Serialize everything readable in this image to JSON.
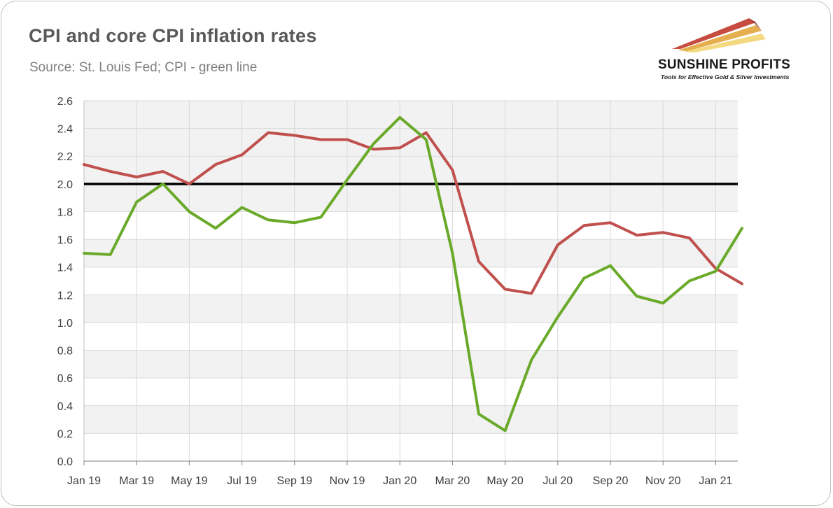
{
  "header": {
    "title": "CPI and core CPI inflation rates",
    "subtitle": "Source: St. Louis Fed; CPI - green line"
  },
  "logo": {
    "name": "SUNSHINE PROFITS",
    "tagline": "Tools for Effective Gold & Silver Investments"
  },
  "colors": {
    "cpi": "#6aaa2a",
    "core_cpi": "#c0504d",
    "reference_line": "#000000",
    "plot_band": "#f2f2f2",
    "grid": "#d9d9d9"
  },
  "chart_data": {
    "type": "line",
    "title": "CPI and core CPI inflation rates",
    "xlabel": "",
    "ylabel": "",
    "ylim": [
      0,
      2.6
    ],
    "y_ticks": [
      "0.0",
      "0.2",
      "0.4",
      "0.6",
      "0.8",
      "1.0",
      "1.2",
      "1.4",
      "1.6",
      "1.8",
      "2.0",
      "2.2",
      "2.4",
      "2.6"
    ],
    "x": [
      "Jan 19",
      "Feb 19",
      "Mar 19",
      "Apr 19",
      "May 19",
      "Jun 19",
      "Jul 19",
      "Aug 19",
      "Sep 19",
      "Oct 19",
      "Nov 19",
      "Dec 19",
      "Jan 20",
      "Feb 20",
      "Mar 20",
      "Apr 20",
      "May 20",
      "Jun 20",
      "Jul 20",
      "Aug 20",
      "Sep 20",
      "Oct 20",
      "Nov 20",
      "Dec 20",
      "Jan 21",
      "Feb 21"
    ],
    "x_tick_labels": [
      "Jan 19",
      "Mar 19",
      "May 19",
      "Jul 19",
      "Sep 19",
      "Nov 19",
      "Jan 20",
      "Mar 20",
      "May 20",
      "Jul 20",
      "Sep 20",
      "Nov 20",
      "Jan 21"
    ],
    "reference_line": 2.0,
    "grid": true,
    "series": [
      {
        "name": "CPI",
        "color": "#6aaa2a",
        "values": [
          1.5,
          1.49,
          1.87,
          2.0,
          1.8,
          1.68,
          1.83,
          1.74,
          1.72,
          1.76,
          2.03,
          2.29,
          2.48,
          2.32,
          1.5,
          0.34,
          0.22,
          0.73,
          1.04,
          1.32,
          1.41,
          1.19,
          1.14,
          1.3,
          1.37,
          1.68
        ]
      },
      {
        "name": "Core CPI",
        "color": "#c0504d",
        "values": [
          2.14,
          2.09,
          2.05,
          2.09,
          2.0,
          2.14,
          2.21,
          2.37,
          2.35,
          2.32,
          2.32,
          2.25,
          2.26,
          2.37,
          2.1,
          1.44,
          1.24,
          1.21,
          1.56,
          1.7,
          1.72,
          1.63,
          1.65,
          1.61,
          1.39,
          1.28
        ]
      }
    ]
  }
}
